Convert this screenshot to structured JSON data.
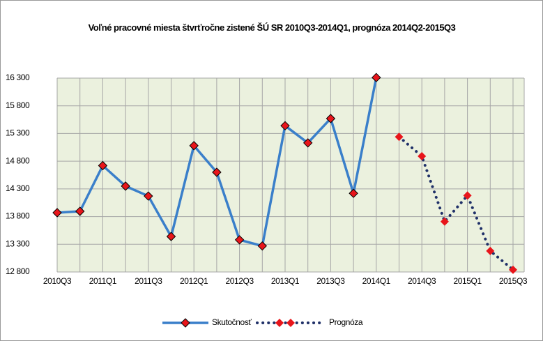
{
  "chart_data": {
    "type": "line",
    "title": "Voľné pracovné miesta štvrťročne zistené ŠÚ SR 2010Q3-2014Q1, prognóza 2014Q2-2015Q3",
    "categories": [
      "2010Q3",
      null,
      "2011Q1",
      null,
      "2011Q3",
      null,
      "2012Q1",
      null,
      "2012Q3",
      null,
      "2013Q1",
      null,
      "2013Q3",
      null,
      "2014Q1",
      null,
      "2014Q3",
      null,
      "2015Q1",
      null,
      "2015Q3"
    ],
    "series": [
      {
        "name": "Skutočnosť",
        "color": "#3a7fca",
        "marker_color": "#e8151b",
        "style": "solid",
        "values": [
          13870,
          13895,
          14720,
          14350,
          14170,
          13440,
          15080,
          14600,
          13380,
          13270,
          15440,
          15130,
          15570,
          14220,
          16310,
          null,
          null,
          null,
          null,
          null,
          null
        ]
      },
      {
        "name": "Prognóza",
        "color": "#1f3068",
        "marker_color": "#e8151b",
        "style": "dotted",
        "values": [
          null,
          null,
          null,
          null,
          null,
          null,
          null,
          null,
          null,
          null,
          null,
          null,
          null,
          null,
          null,
          15240,
          14890,
          13710,
          14180,
          13180,
          12840
        ]
      }
    ],
    "ylim": [
      12800,
      16300
    ],
    "yticks": [
      {
        "value": 12800,
        "label": "12 800"
      },
      {
        "value": 13300,
        "label": "13 300"
      },
      {
        "value": 13800,
        "label": "13 800"
      },
      {
        "value": 14300,
        "label": "14 300"
      },
      {
        "value": 14800,
        "label": "14 800"
      },
      {
        "value": 15300,
        "label": "15 300"
      },
      {
        "value": 15800,
        "label": "15 800"
      },
      {
        "value": 16300,
        "label": "16 300"
      }
    ],
    "grid": true,
    "legend": "bottom"
  }
}
